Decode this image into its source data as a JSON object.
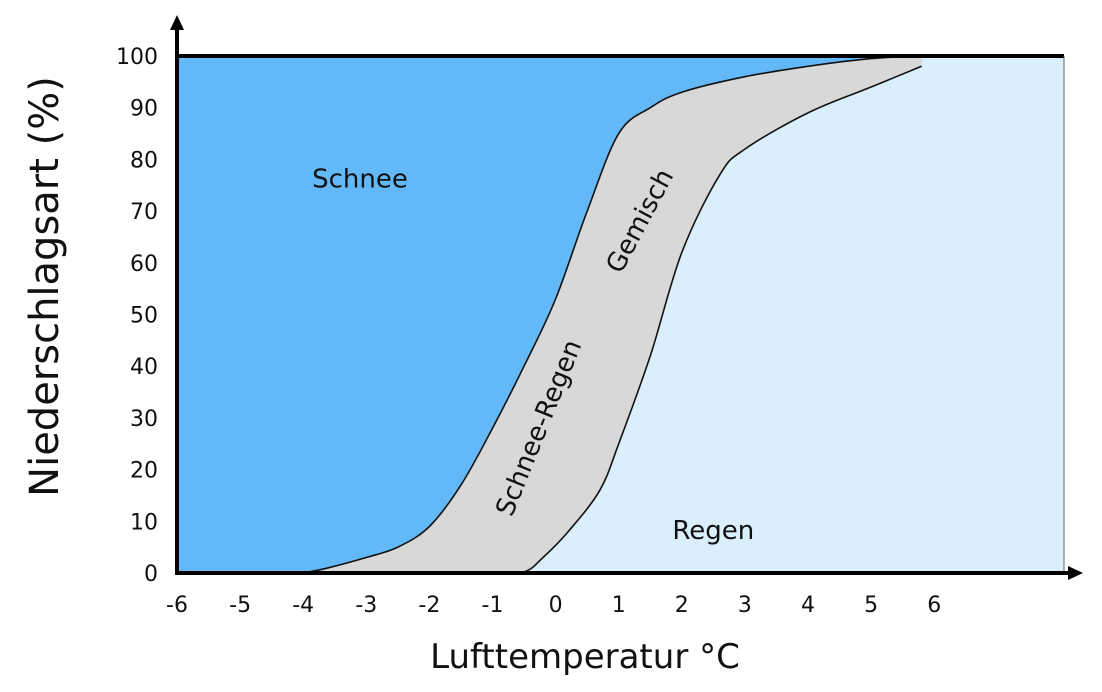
{
  "chart_data": {
    "type": "area",
    "title": "",
    "xlabel": "Lufttemperatur °C",
    "ylabel": "Niederschlagsart (%)",
    "xlim": [
      -6,
      8
    ],
    "ylim": [
      0,
      100
    ],
    "x_ticks": [
      -6,
      -5,
      -4,
      -3,
      -2,
      -1,
      0,
      1,
      2,
      3,
      4,
      5,
      6
    ],
    "y_ticks": [
      0,
      10,
      20,
      30,
      40,
      50,
      60,
      70,
      80,
      90,
      100
    ],
    "regions": [
      {
        "name": "Schnee",
        "color": "#63b8f7",
        "label_pos": [
          -3.1,
          76
        ]
      },
      {
        "name": "Regen",
        "color": "#daeefc",
        "label_pos": [
          2.5,
          8
        ]
      },
      {
        "name": "Schnee-Regen",
        "color": "#d8d8d8",
        "label_pos": [
          -0.25,
          28
        ],
        "label_angle": -68
      },
      {
        "name": "Gemisch",
        "color": "#d8d8d8",
        "label_pos": [
          1.35,
          68
        ],
        "label_angle": -62
      }
    ],
    "series": [
      {
        "name": "Schnee-Regen",
        "x": [
          -4.0,
          -3.6,
          -3.0,
          -2.5,
          -2.0,
          -1.5,
          -1.0,
          -0.5,
          0.0,
          0.5,
          1.0,
          1.5,
          2.0,
          3.0,
          4.0,
          5.0,
          5.8
        ],
        "values": [
          0,
          1,
          3,
          5,
          9,
          17,
          28,
          40,
          53,
          70,
          85,
          90,
          93,
          96,
          98,
          99.5,
          100
        ]
      },
      {
        "name": "Gemisch",
        "x": [
          -4.0,
          -3.0,
          -2.0,
          -1.0,
          -0.5,
          -0.2,
          0.2,
          0.7,
          1.0,
          1.5,
          2.0,
          2.6,
          3.0,
          4.0,
          5.0,
          5.8
        ],
        "values": [
          0,
          0,
          0,
          0,
          0.2,
          3,
          8,
          16,
          25,
          42,
          62,
          77,
          82,
          89,
          94,
          98
        ]
      }
    ]
  }
}
